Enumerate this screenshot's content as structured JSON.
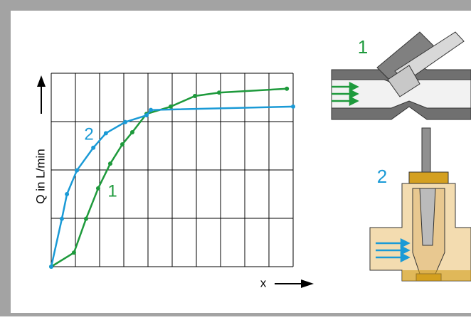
{
  "chart_data": {
    "type": "line",
    "y_label": "Q in L/min",
    "x_label": "x",
    "xlim": [
      0,
      10
    ],
    "ylim": [
      0,
      4
    ],
    "xticks": [
      0,
      1,
      2,
      3,
      4,
      5,
      6,
      7,
      8,
      9,
      10
    ],
    "yticks": [
      0,
      1,
      2,
      3,
      4
    ],
    "grid": true,
    "series": [
      {
        "name": "1",
        "color": "#1e9a3c",
        "x": [
          0,
          0.94,
          1.44,
          1.94,
          2.44,
          2.94,
          3.35,
          3.94,
          4.94,
          5.94,
          6.94,
          9.74
        ],
        "values": [
          0,
          0.29,
          0.99,
          1.62,
          2.13,
          2.53,
          2.78,
          3.16,
          3.31,
          3.53,
          3.6,
          3.68
        ]
      },
      {
        "name": "2",
        "color": "#1a9ad6",
        "x": [
          0,
          0.44,
          0.65,
          1.06,
          1.74,
          2.26,
          3.06,
          3.94,
          4.12,
          10
        ],
        "values": [
          0,
          0.99,
          1.5,
          1.99,
          2.46,
          2.76,
          2.99,
          3.13,
          3.24,
          3.31
        ]
      }
    ]
  }
}
